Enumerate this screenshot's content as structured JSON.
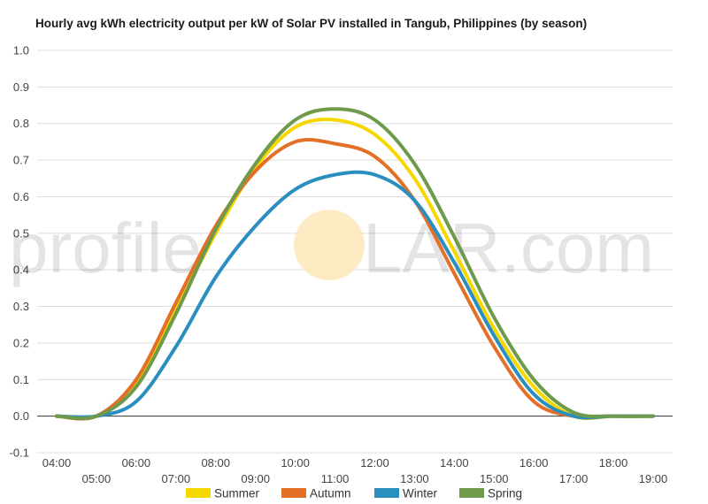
{
  "chart_data": {
    "type": "line",
    "title": "Hourly avg kWh electricity output per kW of Solar PV installed in Tangub, Philippines (by season)",
    "xlabel": "",
    "ylabel": "",
    "x": [
      "04:00",
      "05:00",
      "06:00",
      "07:00",
      "08:00",
      "09:00",
      "10:00",
      "11:00",
      "12:00",
      "13:00",
      "14:00",
      "15:00",
      "16:00",
      "17:00",
      "18:00",
      "19:00"
    ],
    "x_tick_labels_top": [
      "04:00",
      "06:00",
      "08:00",
      "10:00",
      "12:00",
      "14:00",
      "16:00",
      "18:00"
    ],
    "x_tick_labels_bottom": [
      "05:00",
      "07:00",
      "09:00",
      "11:00",
      "13:00",
      "15:00",
      "17:00",
      "19:00"
    ],
    "ylim": [
      -0.1,
      1.0
    ],
    "yticks": [
      "1.0",
      "0.9",
      "0.8",
      "0.7",
      "0.6",
      "0.5",
      "0.4",
      "0.3",
      "0.2",
      "0.1",
      "0.0",
      "-0.1"
    ],
    "grid": true,
    "legend_position": "bottom",
    "series": [
      {
        "name": "Summer",
        "color": "#f5d800",
        "values": [
          0.0,
          0.0,
          0.09,
          0.29,
          0.5,
          0.68,
          0.79,
          0.81,
          0.77,
          0.65,
          0.45,
          0.24,
          0.08,
          0.0,
          0.0,
          0.0
        ]
      },
      {
        "name": "Autumn",
        "color": "#e37026",
        "values": [
          0.0,
          0.0,
          0.1,
          0.31,
          0.52,
          0.67,
          0.75,
          0.745,
          0.71,
          0.59,
          0.39,
          0.19,
          0.04,
          0.0,
          0.0,
          0.0
        ]
      },
      {
        "name": "Winter",
        "color": "#2a8fbf",
        "values": [
          0.0,
          0.0,
          0.04,
          0.19,
          0.38,
          0.52,
          0.62,
          0.66,
          0.66,
          0.59,
          0.42,
          0.22,
          0.06,
          0.0,
          0.0,
          0.0
        ]
      },
      {
        "name": "Spring",
        "color": "#6f9a4b",
        "values": [
          0.0,
          0.0,
          0.08,
          0.28,
          0.51,
          0.69,
          0.81,
          0.84,
          0.81,
          0.69,
          0.49,
          0.27,
          0.1,
          0.01,
          0.0,
          0.0
        ]
      }
    ]
  },
  "watermark": {
    "text_left": "profile",
    "text_right": "LAR.com",
    "sun_color": "#fde9b8"
  }
}
